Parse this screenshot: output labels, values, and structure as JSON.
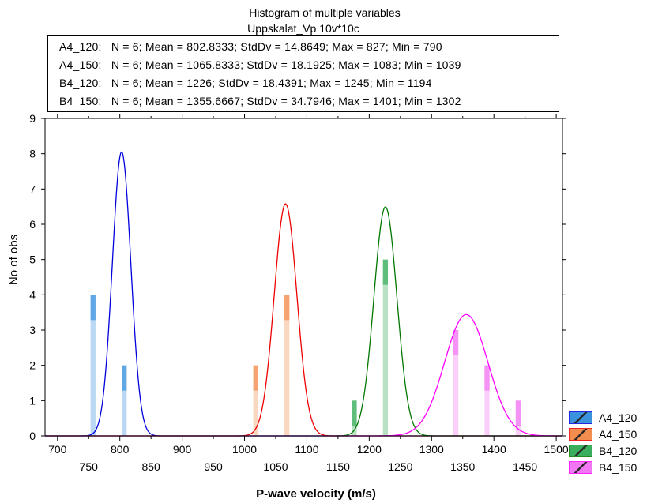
{
  "chart_data": {
    "type": "bar",
    "title": "Histogram of multiple variables",
    "subtitle": "Uppskalat_Vp 10v*10c",
    "xlabel": "P-wave velocity (m/s)",
    "ylabel": "No of obs",
    "xlim": [
      680,
      1510
    ],
    "ylim": [
      0,
      9
    ],
    "xticks_upper": [
      "700",
      "800",
      "900",
      "1000",
      "1100",
      "1200",
      "1300",
      "1400",
      "1500"
    ],
    "xticks_lower": [
      "750",
      "850",
      "950",
      "1050",
      "1150",
      "1250",
      "1350",
      "1450"
    ],
    "yticks": [
      "0",
      "1",
      "2",
      "3",
      "4",
      "5",
      "6",
      "7",
      "8",
      "9"
    ],
    "stats": [
      "A4_120:   N = 6; Mean = 802.8333; StdDv = 14.8649; Max = 827; Min = 790",
      "A4_150:   N = 6; Mean = 1065.8333; StdDv = 18.1925; Max = 1083; Min = 1039",
      "B4_120:   N = 6; Mean = 1226; StdDv = 18.4391; Max = 1245; Min = 1194",
      "B4_150:   N = 6; Mean = 1355.6667; StdDv = 34.7946; Max = 1401; Min = 1302"
    ],
    "series": [
      {
        "name": "A4_120",
        "color": "#1a7fd8",
        "curve_color": "#0000dd",
        "mean": 802.8333,
        "stddev": 14.8649,
        "bars": [
          {
            "x": 757,
            "count": 4
          },
          {
            "x": 807,
            "count": 2
          }
        ]
      },
      {
        "name": "A4_150",
        "color": "#f07a30",
        "curve_color": "#ee0000",
        "mean": 1065.8333,
        "stddev": 18.1925,
        "bars": [
          {
            "x": 1018,
            "count": 2
          },
          {
            "x": 1068,
            "count": 4
          }
        ]
      },
      {
        "name": "B4_120",
        "color": "#18a040",
        "curve_color": "#007700",
        "mean": 1226,
        "stddev": 18.4391,
        "bars": [
          {
            "x": 1176,
            "count": 1
          },
          {
            "x": 1226,
            "count": 5
          }
        ]
      },
      {
        "name": "B4_150",
        "color": "#f060f0",
        "curve_color": "#ff00ff",
        "mean": 1355.6667,
        "stddev": 34.7946,
        "bars": [
          {
            "x": 1339,
            "count": 3
          },
          {
            "x": 1389,
            "count": 2
          },
          {
            "x": 1439,
            "count": 1
          }
        ]
      }
    ]
  }
}
